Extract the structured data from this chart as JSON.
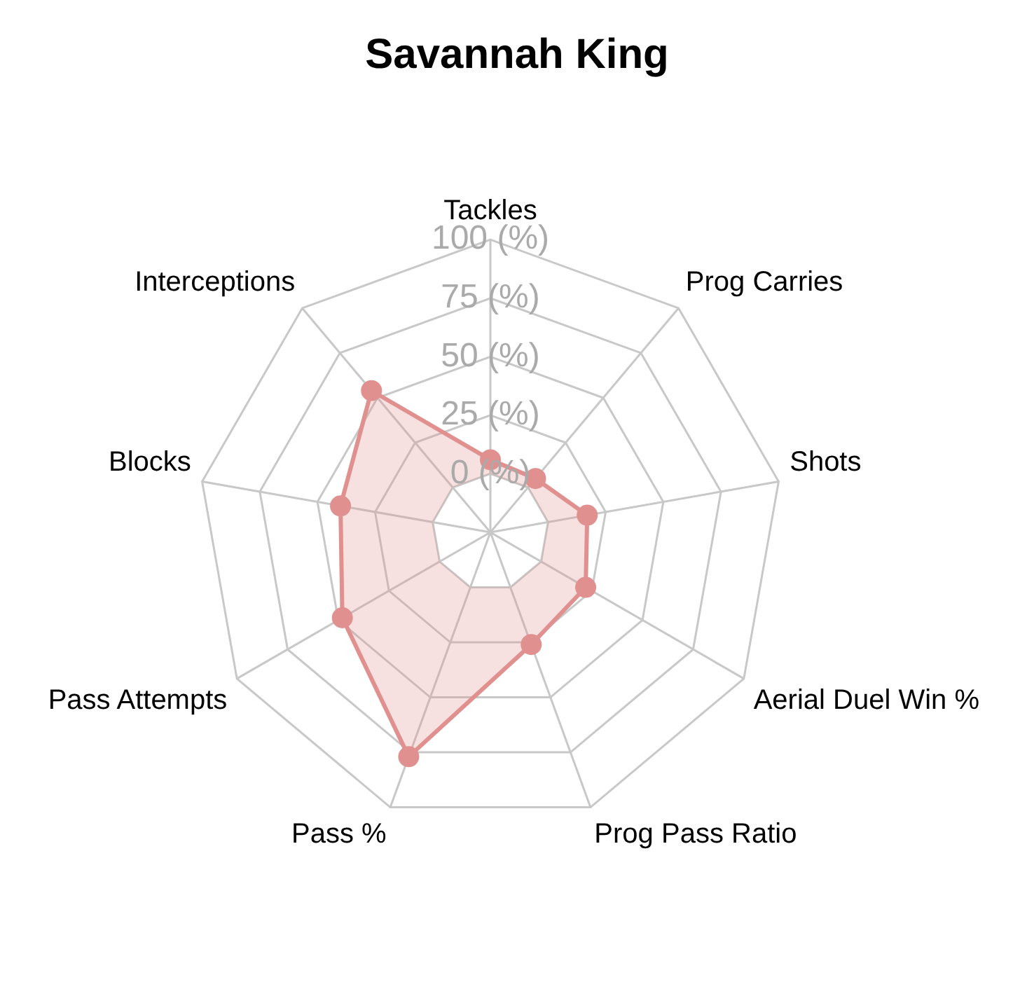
{
  "chart_data": {
    "type": "radar",
    "title": "Savannah King",
    "categories": [
      "Tackles",
      "Prog Carries",
      "Shots",
      "Aerial Duel Win %",
      "Prog Pass Ratio",
      "Pass %",
      "Pass Attempts",
      "Blocks",
      "Interceptions"
    ],
    "series": [
      {
        "color": "#e0908f",
        "values": [
          6,
          5,
          17,
          22,
          26,
          77,
          48,
          40,
          54
        ]
      }
    ],
    "ylim": [
      -25,
      100
    ],
    "yticks": [
      {
        "value": 0,
        "label": "0 (%)"
      },
      {
        "value": 25,
        "label": "25 (%)"
      },
      {
        "value": 50,
        "label": "50 (%)"
      },
      {
        "value": 75,
        "label": "75 (%)"
      },
      {
        "value": 100,
        "label": "100 (%)"
      }
    ],
    "grid": true,
    "legend": false,
    "marker": "circle"
  }
}
